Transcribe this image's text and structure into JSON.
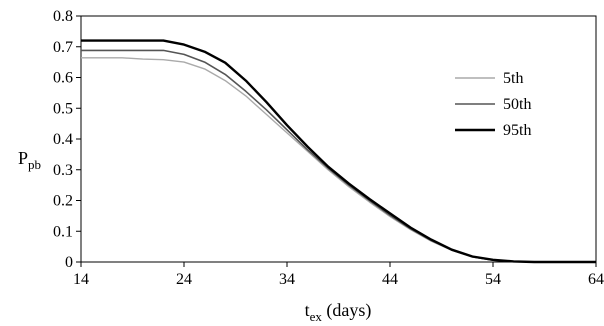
{
  "chart_data": {
    "type": "line",
    "xlabel_main": "t",
    "xlabel_sub": "ex",
    "xlabel_unit": " (days)",
    "ylabel_main": "P",
    "ylabel_sub": "pb",
    "xlim": [
      14,
      64
    ],
    "ylim": [
      0,
      0.8
    ],
    "xticks": [
      14,
      24,
      34,
      44,
      54,
      64
    ],
    "yticks": [
      0,
      0.1,
      0.2,
      0.3,
      0.4,
      0.5,
      0.6,
      0.7,
      0.8
    ],
    "xtick_labels": [
      "14",
      "24",
      "34",
      "44",
      "54",
      "64"
    ],
    "ytick_labels": [
      "0",
      "0.1",
      "0.2",
      "0.3",
      "0.4",
      "0.5",
      "0.6",
      "0.7",
      "0.8"
    ],
    "grid": false,
    "legend_position": "top-right",
    "series": [
      {
        "name": "5th",
        "color": "#aaaaaa",
        "width": 1.4,
        "x": [
          14,
          16,
          18,
          20,
          22,
          24,
          26,
          28,
          30,
          32,
          34,
          36,
          38,
          40,
          42,
          44,
          46,
          48,
          50,
          52,
          54,
          56,
          58,
          60,
          62,
          64
        ],
        "y": [
          0.664,
          0.664,
          0.664,
          0.66,
          0.658,
          0.65,
          0.628,
          0.59,
          0.54,
          0.48,
          0.42,
          0.36,
          0.3,
          0.245,
          0.195,
          0.148,
          0.105,
          0.068,
          0.038,
          0.016,
          0.006,
          0.002,
          0,
          0,
          0,
          0
        ]
      },
      {
        "name": "50th",
        "color": "#555555",
        "width": 1.6,
        "x": [
          14,
          16,
          18,
          20,
          22,
          24,
          26,
          28,
          30,
          32,
          34,
          36,
          38,
          40,
          42,
          44,
          46,
          48,
          50,
          52,
          54,
          56,
          58,
          60,
          62,
          64
        ],
        "y": [
          0.688,
          0.688,
          0.688,
          0.688,
          0.688,
          0.675,
          0.65,
          0.61,
          0.555,
          0.495,
          0.43,
          0.365,
          0.305,
          0.25,
          0.2,
          0.152,
          0.108,
          0.07,
          0.039,
          0.017,
          0.006,
          0.002,
          0,
          0,
          0,
          0
        ]
      },
      {
        "name": "95th",
        "color": "#000000",
        "width": 2.4,
        "x": [
          14,
          16,
          18,
          20,
          22,
          24,
          26,
          28,
          30,
          32,
          34,
          36,
          38,
          40,
          42,
          44,
          46,
          48,
          50,
          52,
          54,
          56,
          58,
          60,
          62,
          64
        ],
        "y": [
          0.72,
          0.72,
          0.72,
          0.72,
          0.72,
          0.707,
          0.684,
          0.648,
          0.59,
          0.52,
          0.445,
          0.375,
          0.31,
          0.255,
          0.205,
          0.158,
          0.112,
          0.073,
          0.04,
          0.018,
          0.007,
          0.002,
          0,
          0,
          0,
          0
        ]
      }
    ]
  }
}
